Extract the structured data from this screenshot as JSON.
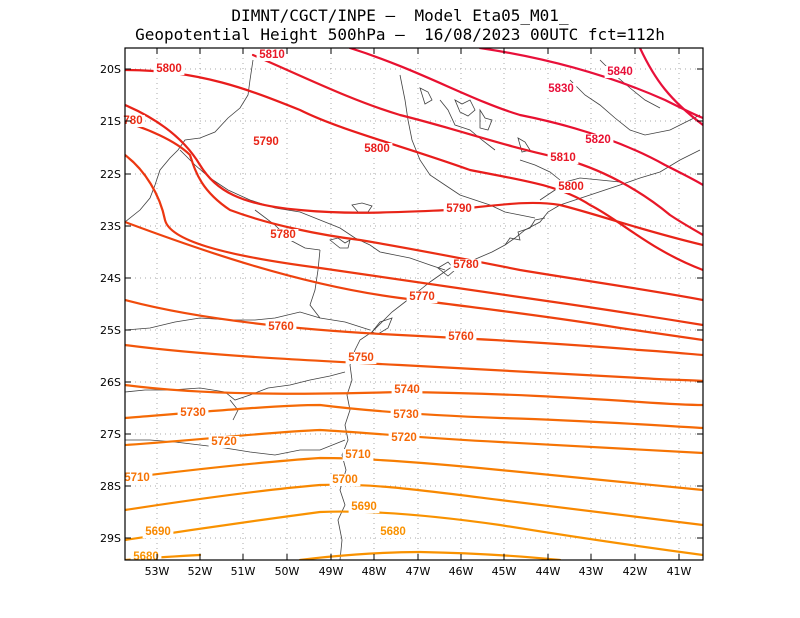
{
  "header": {
    "line1": "DIMNT/CGCT/INPE –  Model Eta05_M01_",
    "line2": "Geopotential Height 500hPa –  16/08/2023 00UTC fct=112h"
  },
  "axes": {
    "x_ticks": [
      "53W",
      "52W",
      "51W",
      "50W",
      "49W",
      "48W",
      "47W",
      "46W",
      "45W",
      "44W",
      "43W",
      "42W",
      "41W"
    ],
    "y_ticks": [
      "20S",
      "21S",
      "22S",
      "23S",
      "24S",
      "25S",
      "26S",
      "27S",
      "28S",
      "29S"
    ]
  },
  "contours": [
    {
      "level": "5840",
      "color": "#e8103a"
    },
    {
      "level": "5830",
      "color": "#e8103a"
    },
    {
      "level": "5820",
      "color": "#e81030"
    },
    {
      "level": "5810",
      "color": "#e81828"
    },
    {
      "level": "5800",
      "color": "#e81c1c"
    },
    {
      "level": "5790",
      "color": "#e82418"
    },
    {
      "level": "5780",
      "color": "#ea2e14"
    },
    {
      "level": "5770",
      "color": "#ec3810"
    },
    {
      "level": "5760",
      "color": "#ee420e"
    },
    {
      "level": "5750",
      "color": "#f04c0c"
    },
    {
      "level": "5740",
      "color": "#f2560a"
    },
    {
      "level": "5730",
      "color": "#f46008"
    },
    {
      "level": "5720",
      "color": "#f56a06"
    },
    {
      "level": "5710",
      "color": "#f67404"
    },
    {
      "level": "5700",
      "color": "#f77e02"
    },
    {
      "level": "5690",
      "color": "#f88800"
    },
    {
      "level": "5680",
      "color": "#f99200"
    }
  ],
  "labels": [
    {
      "text": "5810",
      "color": "#e81828"
    },
    {
      "text": "5800",
      "color": "#e81c1c"
    },
    {
      "text": "5840",
      "color": "#e8103a"
    },
    {
      "text": "5830",
      "color": "#e8103a"
    },
    {
      "text": "780",
      "color": "#ea2e14"
    },
    {
      "text": "5790",
      "color": "#e82418"
    },
    {
      "text": "5800",
      "color": "#e81c1c"
    },
    {
      "text": "5820",
      "color": "#e81030"
    },
    {
      "text": "5810",
      "color": "#e81828"
    },
    {
      "text": "5800",
      "color": "#e81c1c"
    },
    {
      "text": "5790",
      "color": "#e82418"
    },
    {
      "text": "5780",
      "color": "#ea2e14"
    },
    {
      "text": "5780",
      "color": "#ea2e14"
    },
    {
      "text": "5770",
      "color": "#ec3810"
    },
    {
      "text": "5760",
      "color": "#ee420e"
    },
    {
      "text": "5760",
      "color": "#ee420e"
    },
    {
      "text": "5750",
      "color": "#f04c0c"
    },
    {
      "text": "5740",
      "color": "#f2560a"
    },
    {
      "text": "5730",
      "color": "#f46008"
    },
    {
      "text": "5730",
      "color": "#f46008"
    },
    {
      "text": "5720",
      "color": "#f56a06"
    },
    {
      "text": "5720",
      "color": "#f56a06"
    },
    {
      "text": "5710",
      "color": "#f67404"
    },
    {
      "text": "5710",
      "color": "#f67404"
    },
    {
      "text": "5700",
      "color": "#f77e02"
    },
    {
      "text": "5690",
      "color": "#f88800"
    },
    {
      "text": "5690",
      "color": "#f88800"
    },
    {
      "text": "5680",
      "color": "#f99200"
    },
    {
      "text": "5680",
      "color": "#f99200"
    }
  ]
}
